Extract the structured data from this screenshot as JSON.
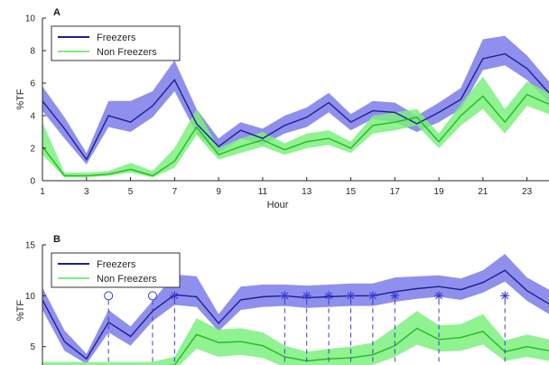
{
  "chart_data": [
    {
      "type": "line",
      "panel_label": "A",
      "xlabel": "Hour",
      "ylabel": "%TF",
      "xlim": [
        1,
        24
      ],
      "ylim": [
        0,
        10
      ],
      "xticks": [
        1,
        3,
        5,
        7,
        9,
        11,
        13,
        15,
        17,
        19,
        21,
        23
      ],
      "yticks": [
        0,
        2,
        4,
        6,
        8,
        10
      ],
      "legend": {
        "position": "top-left"
      },
      "x": [
        1,
        2,
        3,
        4,
        5,
        6,
        7,
        8,
        9,
        10,
        11,
        12,
        13,
        14,
        15,
        16,
        17,
        18,
        19,
        20,
        21,
        22,
        23,
        24
      ],
      "series": [
        {
          "name": "Freezers",
          "color": "#1f1f8f",
          "band_color": "#7b7bea",
          "values": [
            4.9,
            3.2,
            1.3,
            4.0,
            3.6,
            4.6,
            6.2,
            3.5,
            2.1,
            3.1,
            2.6,
            3.4,
            3.9,
            4.8,
            3.6,
            4.3,
            4.2,
            3.5,
            4.2,
            5.0,
            7.5,
            7.8,
            6.9,
            5.4
          ],
          "lower": [
            4.3,
            2.6,
            1.0,
            3.3,
            3.0,
            3.9,
            5.5,
            2.9,
            1.7,
            2.6,
            2.2,
            2.9,
            3.3,
            4.2,
            3.1,
            3.8,
            3.6,
            3.0,
            3.6,
            4.4,
            6.8,
            7.1,
            6.2,
            4.8
          ],
          "upper": [
            5.8,
            3.9,
            1.7,
            4.9,
            4.9,
            5.5,
            7.4,
            4.4,
            2.6,
            3.6,
            3.2,
            4.0,
            4.5,
            5.4,
            4.1,
            4.9,
            4.8,
            4.0,
            4.8,
            5.7,
            8.7,
            8.9,
            7.7,
            6.1
          ]
        },
        {
          "name": "Non Freezers",
          "color": "#22bb22",
          "band_color": "#7df07d",
          "values": [
            2.1,
            0.3,
            0.3,
            0.4,
            0.7,
            0.3,
            1.2,
            3.3,
            1.6,
            2.1,
            2.5,
            1.9,
            2.4,
            2.6,
            2.0,
            3.4,
            3.6,
            3.9,
            2.4,
            4.0,
            5.2,
            3.6,
            5.3,
            4.7
          ],
          "lower": [
            1.6,
            0.2,
            0.2,
            0.3,
            0.5,
            0.2,
            0.8,
            2.8,
            1.3,
            1.7,
            2.1,
            1.6,
            2.0,
            2.2,
            1.7,
            2.9,
            3.1,
            3.4,
            2.0,
            3.4,
            4.4,
            2.9,
            4.6,
            4.1
          ],
          "upper": [
            3.6,
            0.5,
            0.5,
            0.6,
            1.1,
            0.6,
            2.0,
            4.4,
            2.0,
            2.6,
            3.0,
            2.3,
            2.9,
            3.1,
            2.4,
            4.0,
            4.2,
            4.4,
            2.9,
            4.7,
            6.4,
            4.4,
            6.1,
            5.4
          ]
        }
      ]
    },
    {
      "type": "line",
      "panel_label": "B",
      "xlabel": "",
      "ylabel": "%TF",
      "xlim": [
        1,
        24
      ],
      "ylim": [
        3.2,
        15
      ],
      "yticks": [
        5,
        10,
        15
      ],
      "legend": {
        "position": "top-left"
      },
      "x": [
        1,
        2,
        3,
        4,
        5,
        6,
        7,
        8,
        9,
        10,
        11,
        12,
        13,
        14,
        15,
        16,
        17,
        18,
        19,
        20,
        21,
        22,
        23,
        24
      ],
      "series": [
        {
          "name": "Freezers",
          "color": "#1f1f8f",
          "band_color": "#7b7bea",
          "values": [
            9.6,
            5.5,
            3.8,
            7.4,
            6.0,
            8.5,
            10.1,
            9.9,
            7.3,
            9.6,
            9.9,
            10.0,
            9.8,
            9.9,
            10.0,
            10.0,
            10.4,
            10.7,
            10.9,
            10.6,
            11.3,
            12.5,
            10.5,
            9.2
          ],
          "lower": [
            8.6,
            4.6,
            3.3,
            6.4,
            5.1,
            7.5,
            9.1,
            8.9,
            6.5,
            8.6,
            8.9,
            9.0,
            8.8,
            8.9,
            9.0,
            9.0,
            9.4,
            9.7,
            9.9,
            9.6,
            10.3,
            11.4,
            9.5,
            8.2
          ],
          "upper": [
            10.8,
            6.6,
            4.3,
            8.6,
            7.0,
            9.5,
            12.1,
            11.9,
            8.2,
            10.9,
            11.1,
            11.1,
            11.0,
            11.1,
            11.2,
            11.2,
            11.8,
            11.9,
            12.0,
            11.7,
            12.5,
            14.1,
            11.8,
            10.6
          ]
        },
        {
          "name": "Non Freezers",
          "color": "#22bb22",
          "band_color": "#7df07d",
          "values": [
            3.0,
            3.0,
            3.0,
            3.0,
            3.0,
            3.0,
            3.2,
            6.2,
            5.4,
            5.5,
            5.1,
            4.0,
            3.6,
            3.8,
            3.9,
            4.2,
            5.1,
            6.8,
            5.7,
            5.9,
            6.5,
            4.5,
            5.0,
            4.6
          ],
          "lower": [
            2.5,
            2.5,
            2.5,
            2.5,
            2.5,
            2.5,
            2.7,
            4.8,
            4.0,
            4.2,
            3.9,
            3.0,
            2.8,
            2.9,
            3.0,
            3.2,
            4.0,
            5.2,
            4.5,
            4.6,
            5.2,
            3.6,
            4.0,
            3.6
          ],
          "upper": [
            3.5,
            3.5,
            3.5,
            3.5,
            3.5,
            3.5,
            4.0,
            7.8,
            6.7,
            6.8,
            6.4,
            5.1,
            4.5,
            4.8,
            5.0,
            5.4,
            6.9,
            8.5,
            7.1,
            7.2,
            8.2,
            5.6,
            6.2,
            5.7
          ]
        }
      ],
      "significance_markers": [
        {
          "x": 4,
          "y": 10,
          "symbol": "circle"
        },
        {
          "x": 6,
          "y": 10,
          "symbol": "circle"
        },
        {
          "x": 7,
          "y": 10,
          "symbol": "asterisk"
        },
        {
          "x": 12,
          "y": 10,
          "symbol": "asterisk"
        },
        {
          "x": 13,
          "y": 10,
          "symbol": "asterisk"
        },
        {
          "x": 14,
          "y": 10,
          "symbol": "asterisk"
        },
        {
          "x": 15,
          "y": 10,
          "symbol": "asterisk"
        },
        {
          "x": 16,
          "y": 10,
          "symbol": "asterisk"
        },
        {
          "x": 17,
          "y": 10,
          "symbol": "asterisk"
        },
        {
          "x": 19,
          "y": 10,
          "symbol": "asterisk"
        },
        {
          "x": 22,
          "y": 10,
          "symbol": "asterisk"
        }
      ]
    }
  ]
}
